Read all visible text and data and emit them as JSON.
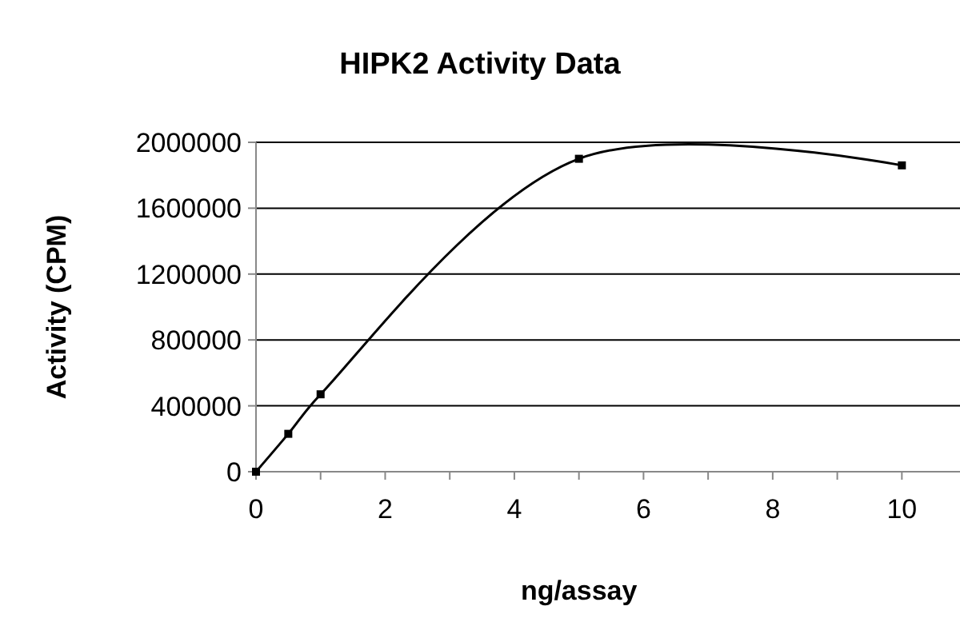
{
  "chart_data": {
    "type": "line",
    "title": "HIPK2 Activity Data",
    "xlabel": "ng/assay",
    "ylabel": "Activity (CPM)",
    "x": [
      0,
      0.5,
      1,
      5,
      10
    ],
    "series": [
      {
        "color": "#000000",
        "values": [
          0,
          230000,
          470000,
          1900000,
          1860000
        ]
      }
    ],
    "xlim": [
      0,
      10.9
    ],
    "xticks": [
      0,
      {
        "value": 1,
        "label": null
      },
      2,
      {
        "value": 3,
        "label": null
      },
      4,
      {
        "value": 5,
        "label": null
      },
      6,
      {
        "value": 7,
        "label": null
      },
      8,
      {
        "value": 9,
        "label": null
      },
      10
    ],
    "ylim": [
      0,
      2000000
    ],
    "yticks": [
      0,
      400000,
      800000,
      1200000,
      1600000,
      2000000
    ],
    "grid": "y",
    "marker": "square",
    "line_style": "solid"
  }
}
